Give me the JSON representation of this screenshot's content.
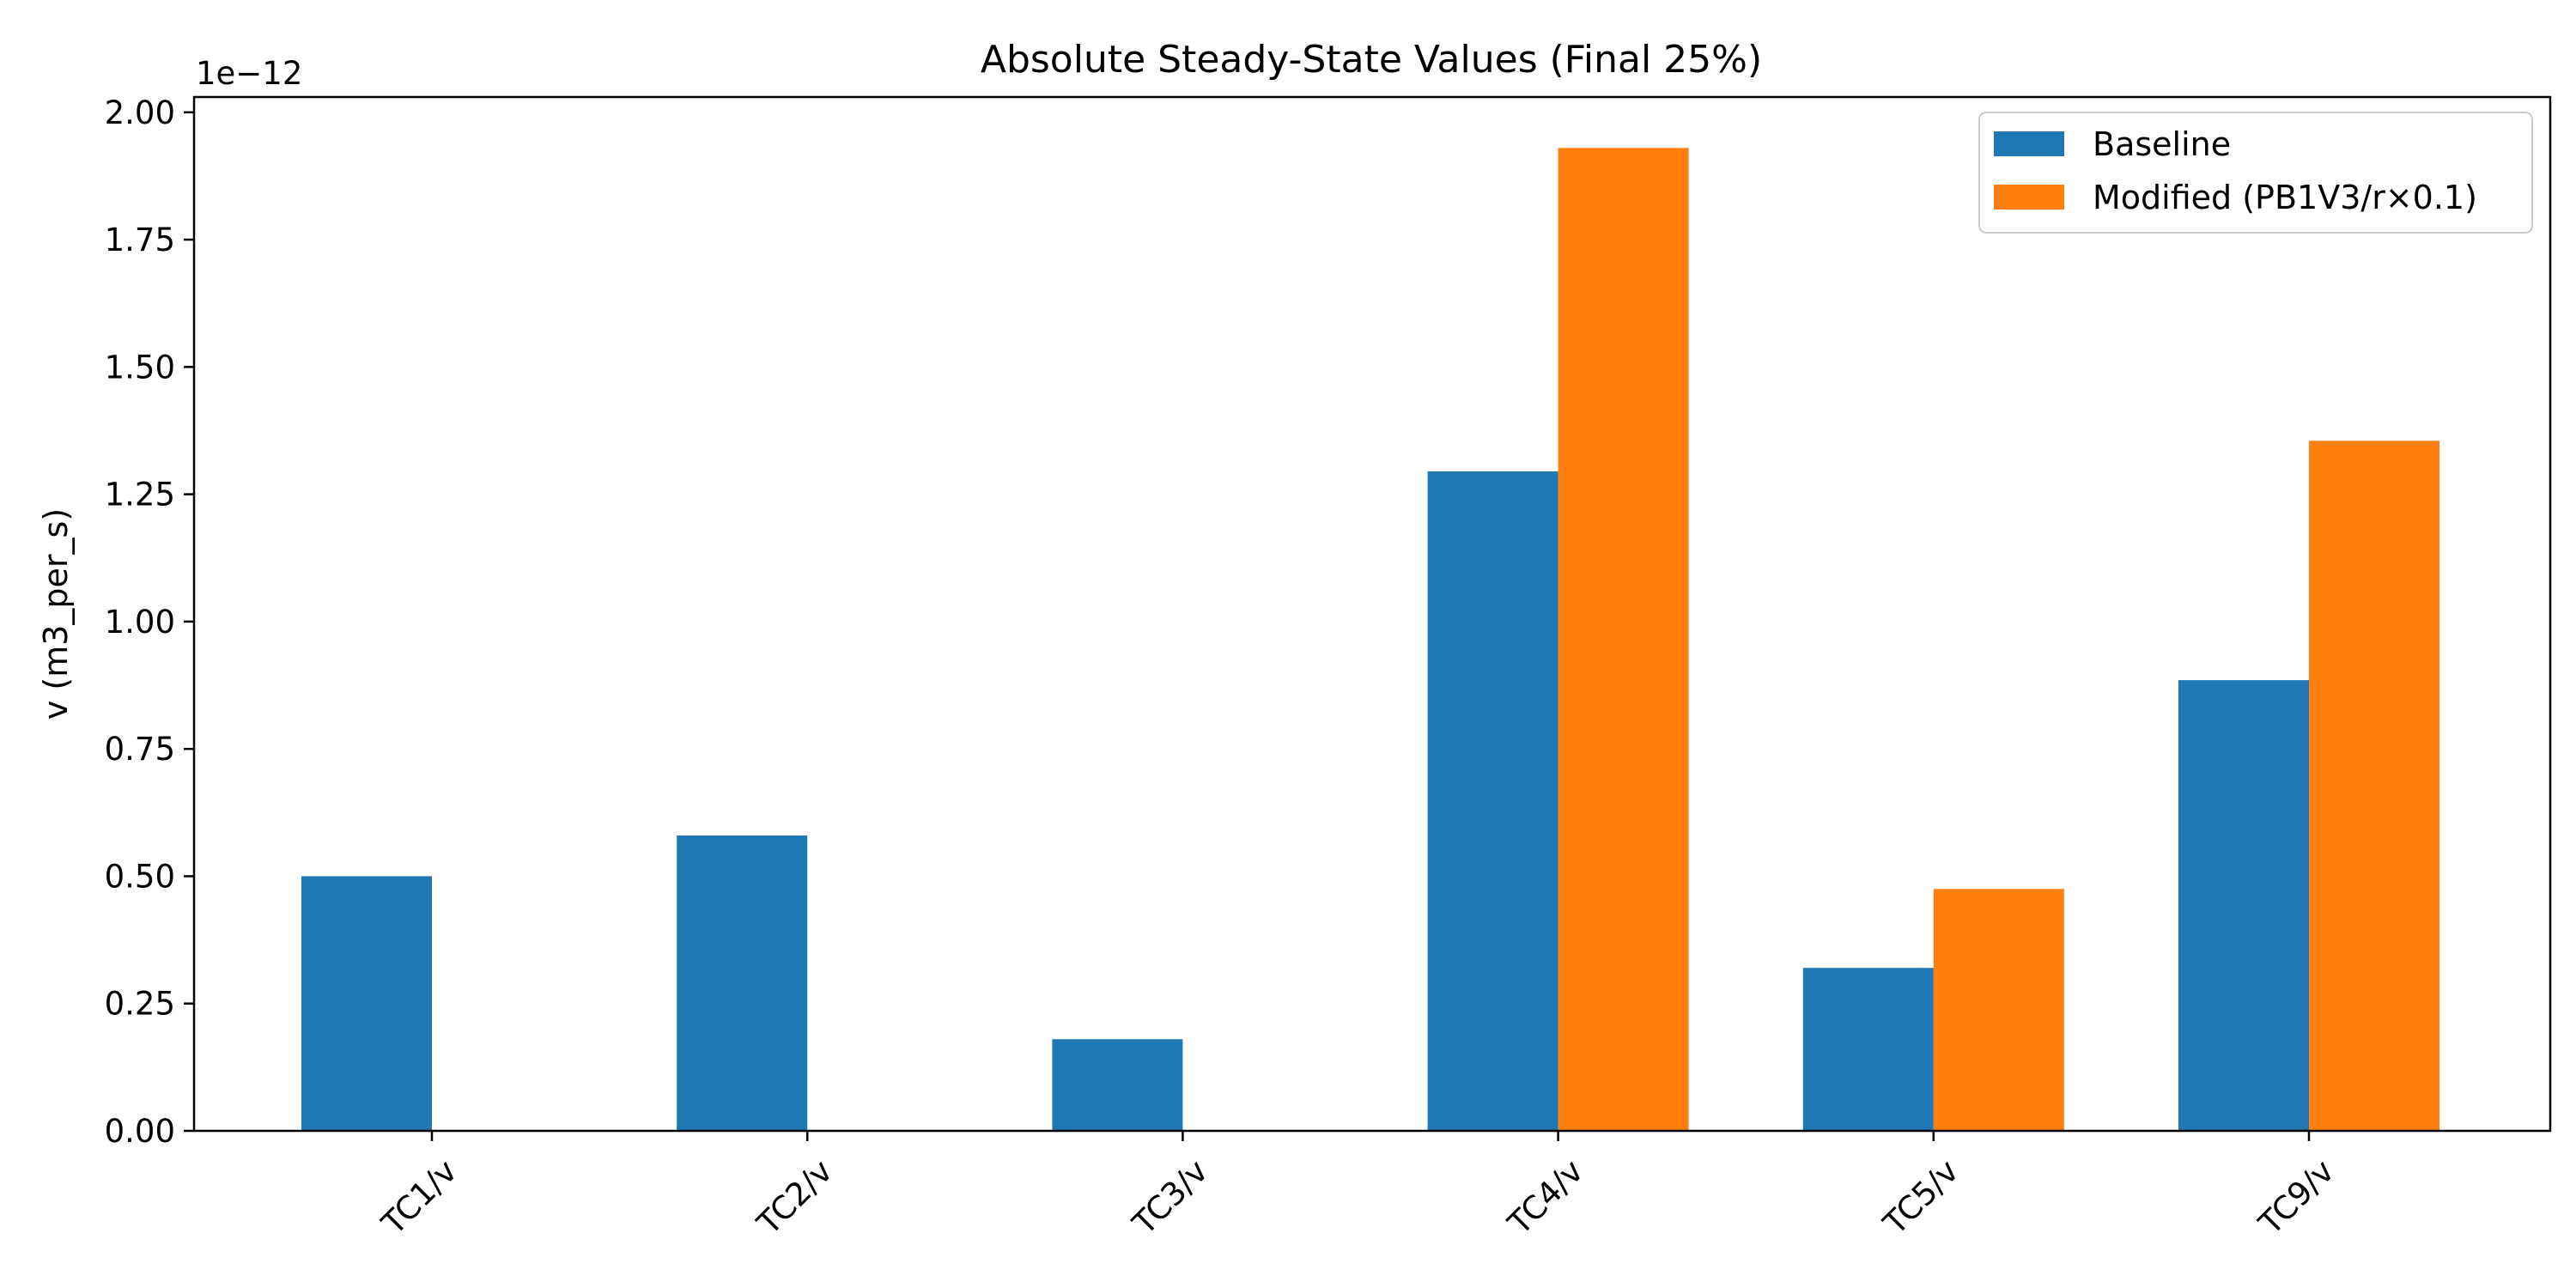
{
  "chart_data": {
    "type": "bar",
    "title": "Absolute Steady-State Values (Final 25%)",
    "xlabel": "",
    "ylabel": "v (m3_per_s)",
    "y_offset_text": "1e−12",
    "y_scale_exponent": -12,
    "categories": [
      "TC1/v",
      "TC2/v",
      "TC3/v",
      "TC4/v",
      "TC5/v",
      "TC9/v"
    ],
    "series": [
      {
        "name": "Baseline",
        "color": "#1f77b4",
        "values": [
          5e-13,
          5.8e-13,
          1.8e-13,
          1.295e-12,
          3.2e-13,
          8.85e-13
        ]
      },
      {
        "name": "Modified (PB1V3/r×0.1)",
        "color": "#ff7f0e",
        "values": [
          0,
          0,
          0,
          1.93e-12,
          4.75e-13,
          1.355e-12
        ]
      }
    ],
    "ylim": [
      0,
      2.03e-12
    ],
    "yticks": [
      0,
      2.5e-13,
      5e-13,
      7.5e-13,
      1e-12,
      1.25e-12,
      1.5e-12,
      1.75e-12,
      2e-12
    ],
    "ytick_labels": [
      "0.00",
      "0.25",
      "0.50",
      "0.75",
      "1.00",
      "1.25",
      "1.50",
      "1.75",
      "2.00"
    ],
    "grid": false,
    "legend_position": "top-right",
    "xtick_rotation": "45 degrees"
  }
}
